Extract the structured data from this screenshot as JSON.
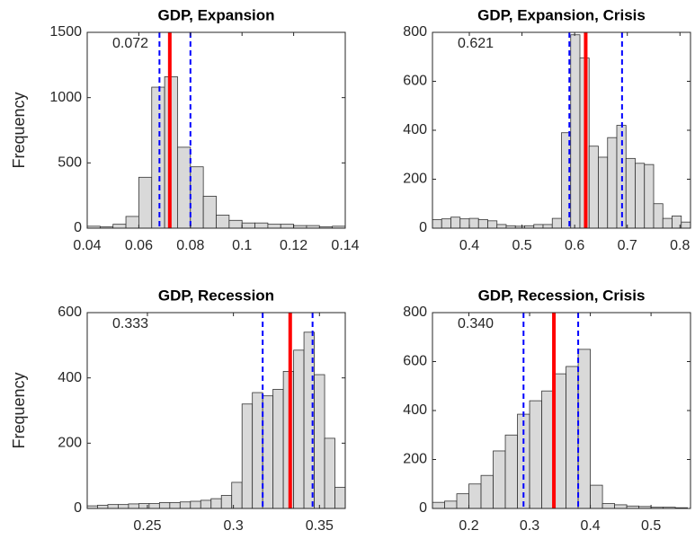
{
  "chart_data": [
    {
      "type": "histogram",
      "title": "GDP, Expansion",
      "ylabel": "Frequency",
      "color": "#d9d9d9",
      "bins": [
        0.04,
        0.045,
        0.05,
        0.055,
        0.06,
        0.065,
        0.07,
        0.075,
        0.08,
        0.085,
        0.09,
        0.095,
        0.1,
        0.105,
        0.11,
        0.115,
        0.12,
        0.125,
        0.13,
        0.135,
        0.14
      ],
      "counts": [
        15,
        10,
        30,
        90,
        390,
        1080,
        1160,
        620,
        470,
        245,
        100,
        60,
        40,
        40,
        30,
        30,
        20,
        20,
        10,
        15
      ],
      "xlim": [
        0.04,
        0.14
      ],
      "ylim": [
        0,
        1500
      ],
      "xticks": [
        0.04,
        0.06,
        0.08,
        0.1,
        0.12,
        0.14
      ],
      "yticks": [
        0,
        500,
        1000,
        1500
      ],
      "estimate": {
        "value": 0.072,
        "label": "0.072"
      },
      "estimate_color": "#ff0000",
      "interval": [
        0.068,
        0.08
      ],
      "interval_color": "#0000ff"
    },
    {
      "type": "histogram",
      "title": "GDP, Expansion, Crisis",
      "color": "#d9d9d9",
      "bins": [
        0.33,
        0.3475,
        0.365,
        0.3825,
        0.4,
        0.4175,
        0.435,
        0.4525,
        0.47,
        0.4875,
        0.505,
        0.5225,
        0.54,
        0.5575,
        0.575,
        0.5925,
        0.61,
        0.6275,
        0.645,
        0.6625,
        0.68,
        0.6975,
        0.715,
        0.7325,
        0.75,
        0.7675,
        0.785,
        0.8025,
        0.82
      ],
      "counts": [
        35,
        38,
        45,
        38,
        40,
        35,
        30,
        15,
        10,
        8,
        10,
        15,
        15,
        40,
        390,
        790,
        695,
        335,
        290,
        370,
        420,
        285,
        265,
        260,
        100,
        40,
        50,
        25
      ],
      "xlim": [
        0.33,
        0.82
      ],
      "ylim": [
        0,
        800
      ],
      "xticks": [
        0.4,
        0.5,
        0.6,
        0.7,
        0.8
      ],
      "yticks": [
        0,
        200,
        400,
        600,
        800
      ],
      "estimate": {
        "value": 0.621,
        "label": "0.621"
      },
      "estimate_color": "#ff0000",
      "interval": [
        0.59,
        0.69
      ],
      "interval_color": "#0000ff"
    },
    {
      "type": "histogram",
      "title": "GDP, Recession",
      "ylabel": "Frequency",
      "color": "#d9d9d9",
      "bins": [
        0.215,
        0.221,
        0.227,
        0.233,
        0.239,
        0.245,
        0.251,
        0.257,
        0.263,
        0.269,
        0.275,
        0.281,
        0.287,
        0.293,
        0.299,
        0.305,
        0.311,
        0.317,
        0.323,
        0.329,
        0.335,
        0.341,
        0.347,
        0.353,
        0.359,
        0.365
      ],
      "counts": [
        8,
        10,
        12,
        12,
        14,
        15,
        15,
        18,
        18,
        20,
        22,
        25,
        30,
        40,
        80,
        320,
        355,
        345,
        365,
        420,
        485,
        540,
        410,
        215,
        65
      ],
      "xlim": [
        0.215,
        0.365
      ],
      "ylim": [
        0,
        600
      ],
      "xticks": [
        0.25,
        0.3,
        0.35
      ],
      "yticks": [
        0,
        200,
        400,
        600
      ],
      "estimate": {
        "value": 0.333,
        "label": "0.333"
      },
      "estimate_color": "#ff0000",
      "interval": [
        0.317,
        0.346
      ],
      "interval_color": "#0000ff"
    },
    {
      "type": "histogram",
      "title": "GDP, Recession, Crisis",
      "color": "#d9d9d9",
      "bins": [
        0.14,
        0.16,
        0.18,
        0.2,
        0.22,
        0.24,
        0.26,
        0.28,
        0.3,
        0.32,
        0.34,
        0.36,
        0.38,
        0.4,
        0.42,
        0.44,
        0.46,
        0.48,
        0.5,
        0.52,
        0.54,
        0.56
      ],
      "counts": [
        25,
        30,
        60,
        100,
        135,
        235,
        300,
        385,
        440,
        480,
        550,
        580,
        650,
        95,
        20,
        15,
        10,
        8,
        5,
        5,
        3
      ],
      "xlim": [
        0.14,
        0.565
      ],
      "ylim": [
        0,
        800
      ],
      "xticks": [
        0.2,
        0.3,
        0.4,
        0.5
      ],
      "yticks": [
        0,
        200,
        400,
        600,
        800
      ],
      "estimate": {
        "value": 0.34,
        "label": "0.340"
      },
      "estimate_color": "#ff0000",
      "interval": [
        0.29,
        0.38
      ],
      "interval_color": "#0000ff"
    }
  ]
}
